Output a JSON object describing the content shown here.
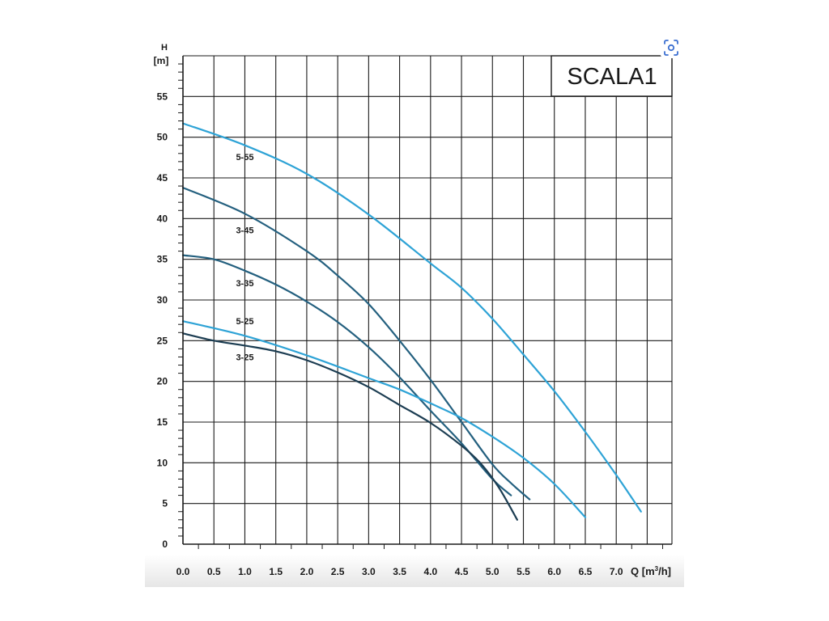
{
  "page": {
    "lens_icon": "image-search-icon"
  },
  "chart_data": {
    "type": "line",
    "title": "SCALA1",
    "ylabel_top": "H",
    "ylabel_unit": "[m]",
    "xlabel": "Q",
    "xlabel_unit_base": "[m",
    "xlabel_unit_sup": "3",
    "xlabel_unit_tail": "/h]",
    "xlim": [
      0,
      7.9
    ],
    "ylim": [
      0,
      60
    ],
    "grid": true,
    "x_ticks": [
      "0.0",
      "0.5",
      "1.0",
      "1.5",
      "2.0",
      "2.5",
      "3.0",
      "3.5",
      "4.0",
      "4.5",
      "5.0",
      "5.5",
      "6.0",
      "6.5",
      "7.0"
    ],
    "y_ticks": [
      "0",
      "5",
      "10",
      "15",
      "20",
      "25",
      "30",
      "35",
      "40",
      "45",
      "50",
      "55"
    ],
    "colors": {
      "dark": "#1c3d52",
      "mid": "#24607f",
      "light": "#2ea3d6",
      "grid": "#1a1a1a"
    },
    "series": [
      {
        "name": "5-55",
        "color": "#2ea3d6",
        "x": [
          0.0,
          1.0,
          2.0,
          3.0,
          4.0,
          4.5,
          5.0,
          5.5,
          6.0,
          6.5,
          7.0,
          7.4
        ],
        "y": [
          51.7,
          49.0,
          45.5,
          40.5,
          34.5,
          31.5,
          27.7,
          23.3,
          18.8,
          13.8,
          8.5,
          4.0
        ],
        "label_at": [
          1.0,
          47.2
        ]
      },
      {
        "name": "3-45",
        "color": "#24607f",
        "x": [
          0.0,
          1.0,
          2.0,
          2.5,
          3.0,
          3.5,
          4.0,
          4.5,
          5.0,
          5.3,
          5.6
        ],
        "y": [
          43.8,
          40.6,
          36.0,
          33.0,
          29.5,
          25.0,
          20.2,
          15.0,
          9.8,
          7.5,
          5.5
        ],
        "label_at": [
          1.0,
          38.2
        ]
      },
      {
        "name": "3-35",
        "color": "#24607f",
        "x": [
          0.0,
          0.5,
          1.0,
          1.5,
          2.0,
          2.5,
          3.0,
          3.5,
          4.0,
          4.5,
          5.0,
          5.3
        ],
        "y": [
          35.5,
          35.0,
          33.6,
          31.9,
          29.8,
          27.3,
          24.2,
          20.5,
          16.4,
          12.4,
          8.0,
          6.0
        ],
        "label_at": [
          1.0,
          31.7
        ]
      },
      {
        "name": "5-25",
        "color": "#2ea3d6",
        "x": [
          0.0,
          1.0,
          2.0,
          3.0,
          3.5,
          4.0,
          4.5,
          5.0,
          5.5,
          6.0,
          6.5
        ],
        "y": [
          27.4,
          25.6,
          23.2,
          20.4,
          19.0,
          17.3,
          15.5,
          13.2,
          10.6,
          7.4,
          3.3
        ],
        "label_at": [
          1.0,
          27.0
        ]
      },
      {
        "name": "3-25",
        "color": "#1c3d52",
        "x": [
          0.0,
          0.5,
          1.0,
          1.5,
          2.0,
          2.5,
          3.0,
          3.5,
          4.0,
          4.5,
          4.8,
          5.1,
          5.4
        ],
        "y": [
          25.9,
          25.0,
          24.4,
          23.7,
          22.6,
          21.1,
          19.3,
          17.1,
          14.9,
          12.1,
          10.0,
          7.0,
          3.0
        ],
        "label_at": [
          1.0,
          22.6
        ]
      }
    ]
  }
}
